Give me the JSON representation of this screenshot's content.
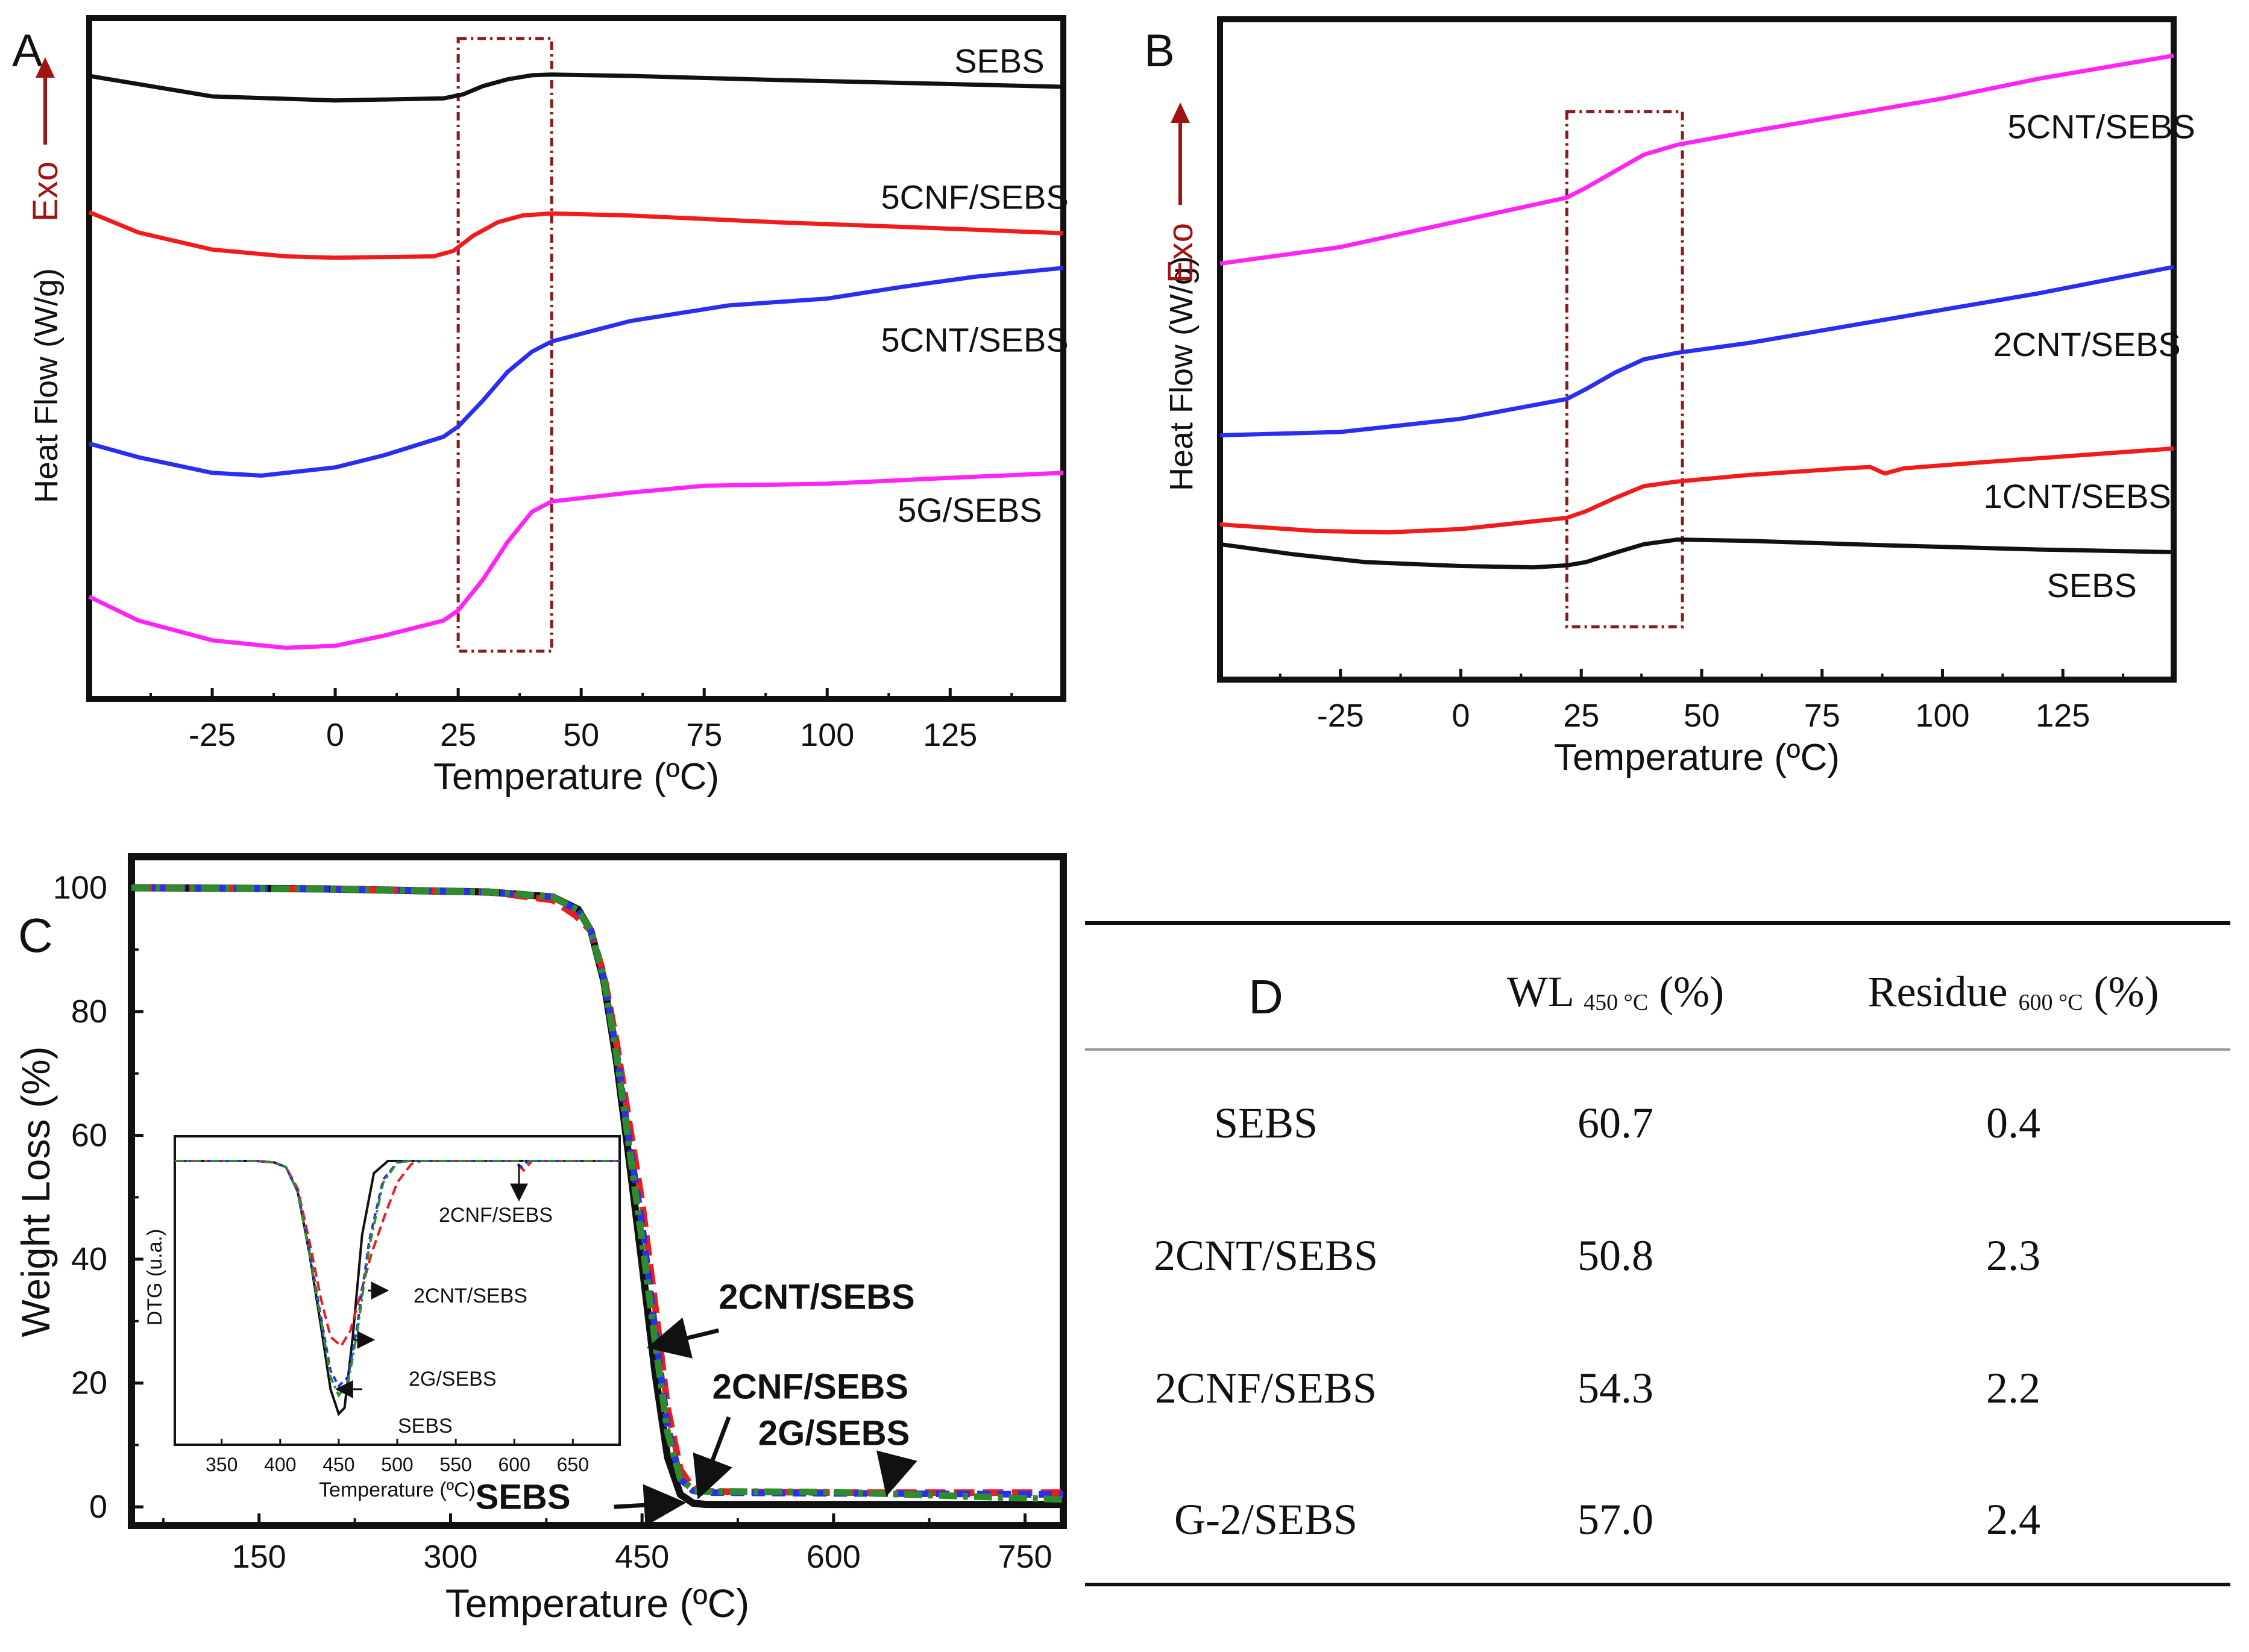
{
  "colors": {
    "black": "#111111",
    "red": "#f01c1c",
    "blue": "#2a2ef0",
    "magenta": "#ff24f6",
    "green": "#2e8b2e",
    "exo": "#a11313",
    "box": "#8b1a1a",
    "rule_gray": "#9a9a9a"
  },
  "chart_data": [
    {
      "id": "A",
      "panel_label": "A",
      "type": "line",
      "xlabel": "Temperature (ºC)",
      "ylabel": "Heat Flow (W/g)",
      "exo_label": "Exo",
      "xlim": [
        -50,
        148
      ],
      "ylim": [
        0,
        100
      ],
      "xticks": [
        -25,
        0,
        25,
        50,
        75,
        100,
        125
      ],
      "tick_labels": [
        "-25",
        "0",
        "25",
        "50",
        "75",
        "100",
        "125"
      ],
      "highlight_box": {
        "x0": 25,
        "x1": 44,
        "y0": 7,
        "y1": 97
      },
      "series": [
        {
          "name": "SEBS",
          "label": "SEBS",
          "color": "black",
          "label_x": 135,
          "label_y": 92,
          "x": [
            -50,
            -25,
            0,
            22,
            26,
            30,
            35,
            40,
            44,
            60,
            90,
            120,
            148
          ],
          "y": [
            91.5,
            88.5,
            87.9,
            88.2,
            88.8,
            90.0,
            91.0,
            91.6,
            91.7,
            91.5,
            90.9,
            90.4,
            89.9
          ]
        },
        {
          "name": "5CNF/SEBS",
          "label": "5CNF/SEBS",
          "color": "red",
          "label_x": 130,
          "label_y": 72,
          "x": [
            -50,
            -40,
            -25,
            -10,
            0,
            20,
            24,
            28,
            33,
            38,
            44,
            60,
            90,
            120,
            148
          ],
          "y": [
            71.5,
            68.5,
            66.0,
            65.0,
            64.8,
            65.0,
            65.8,
            68.0,
            70.0,
            71.0,
            71.3,
            71.0,
            70.0,
            69.2,
            68.4
          ]
        },
        {
          "name": "5CNT/SEBS",
          "label": "5CNT/SEBS",
          "color": "blue",
          "label_x": 130,
          "label_y": 51,
          "x": [
            -50,
            -40,
            -25,
            -15,
            0,
            10,
            22,
            25,
            30,
            35,
            40,
            44,
            60,
            80,
            100,
            115,
            130,
            148
          ],
          "y": [
            37.5,
            35.5,
            33.2,
            32.8,
            34.0,
            35.8,
            38.5,
            40.0,
            43.8,
            48.0,
            51.0,
            52.5,
            55.5,
            57.8,
            58.8,
            60.5,
            62.0,
            63.3
          ]
        },
        {
          "name": "5G/SEBS",
          "label": "5G/SEBS",
          "color": "magenta",
          "label_x": 129,
          "label_y": 26,
          "x": [
            -50,
            -40,
            -25,
            -10,
            0,
            10,
            22,
            25,
            30,
            35,
            40,
            44,
            60,
            75,
            100,
            120,
            148
          ],
          "y": [
            15.0,
            11.5,
            8.6,
            7.5,
            7.8,
            9.3,
            11.5,
            13.0,
            17.5,
            23.0,
            27.5,
            29.0,
            30.3,
            31.3,
            31.6,
            32.3,
            33.2
          ]
        }
      ]
    },
    {
      "id": "B",
      "panel_label": "B",
      "type": "line",
      "xlabel": "Temperature (ºC)",
      "ylabel": "Heat Flow (W/g)",
      "exo_label": "Exo",
      "xlim": [
        -50,
        148
      ],
      "ylim": [
        0,
        100
      ],
      "xticks": [
        -25,
        0,
        25,
        50,
        75,
        100,
        125
      ],
      "tick_labels": [
        "-25",
        "0",
        "25",
        "50",
        "75",
        "100",
        "125"
      ],
      "highlight_box": {
        "x0": 22,
        "x1": 46,
        "y0": 8,
        "y1": 86
      },
      "series": [
        {
          "name": "5CNT/SEBS",
          "label": "5CNT/SEBS",
          "color": "magenta",
          "label_x": 133,
          "label_y": 82,
          "x": [
            -50,
            -25,
            0,
            22,
            26,
            32,
            38,
            45,
            60,
            80,
            100,
            120,
            148
          ],
          "y": [
            63.0,
            65.5,
            69.5,
            73.0,
            74.5,
            77.0,
            79.5,
            81.0,
            83.0,
            85.5,
            88.0,
            91.0,
            94.5
          ]
        },
        {
          "name": "2CNT/SEBS",
          "label": "2CNT/SEBS",
          "color": "blue",
          "label_x": 130,
          "label_y": 49,
          "x": [
            -50,
            -25,
            0,
            22,
            26,
            32,
            38,
            45,
            60,
            80,
            100,
            120,
            148
          ],
          "y": [
            37.0,
            37.5,
            39.5,
            42.5,
            44.0,
            46.5,
            48.5,
            49.5,
            51.0,
            53.5,
            56.0,
            58.5,
            62.5
          ]
        },
        {
          "name": "1CNT/SEBS",
          "label": "1CNT/SEBS",
          "color": "red",
          "label_x": 128,
          "label_y": 26,
          "x": [
            -50,
            -30,
            -15,
            0,
            22,
            26,
            32,
            38,
            45,
            60,
            80,
            85,
            88,
            92,
            110,
            148
          ],
          "y": [
            23.5,
            22.5,
            22.3,
            22.8,
            24.5,
            25.5,
            27.5,
            29.3,
            30.0,
            31.0,
            32.0,
            32.2,
            31.2,
            32.0,
            33.0,
            35.0
          ]
        },
        {
          "name": "SEBS",
          "label": "SEBS",
          "color": "black",
          "label_x": 131,
          "label_y": 12.5,
          "x": [
            -50,
            -35,
            -20,
            0,
            15,
            22,
            26,
            32,
            38,
            45,
            60,
            90,
            120,
            148
          ],
          "y": [
            20.5,
            19.0,
            17.8,
            17.2,
            17.0,
            17.3,
            17.8,
            19.2,
            20.5,
            21.2,
            21.0,
            20.3,
            19.7,
            19.3
          ]
        }
      ]
    },
    {
      "id": "C",
      "panel_label": "C",
      "type": "line",
      "xlabel": "Temperature (ºC)",
      "ylabel": "Weight Loss (%)",
      "xlim": [
        50,
        780
      ],
      "ylim": [
        -3,
        105
      ],
      "xticks": [
        150,
        300,
        450,
        600,
        750
      ],
      "tick_labels": [
        "150",
        "300",
        "450",
        "600",
        "750"
      ],
      "yticks": [
        0,
        20,
        40,
        60,
        80,
        100
      ],
      "ytick_labels": [
        "0",
        "20",
        "40",
        "60",
        "80",
        "100"
      ],
      "series": [
        {
          "name": "SEBS",
          "color": "black",
          "dash": "solid",
          "x": [
            50,
            200,
            330,
            380,
            400,
            410,
            420,
            430,
            440,
            450,
            460,
            470,
            480,
            490,
            500,
            600,
            780
          ],
          "y": [
            100,
            99.8,
            99.3,
            98.5,
            96.5,
            93,
            85,
            72,
            56,
            39.3,
            22,
            8,
            2,
            0.6,
            0.4,
            0.4,
            0.4
          ]
        },
        {
          "name": "2CNT/SEBS",
          "color": "red",
          "dash": "long",
          "x": [
            50,
            200,
            330,
            380,
            398,
            410,
            420,
            430,
            440,
            450,
            460,
            470,
            480,
            490,
            500,
            600,
            780
          ],
          "y": [
            100,
            99.8,
            99.3,
            98.0,
            95.5,
            93,
            86,
            75,
            62,
            49.2,
            33,
            16,
            6,
            3,
            2.5,
            2.3,
            2.3
          ]
        },
        {
          "name": "2CNF/SEBS",
          "color": "blue",
          "dash": "medium",
          "x": [
            50,
            200,
            330,
            380,
            400,
            410,
            420,
            430,
            440,
            450,
            460,
            470,
            480,
            490,
            500,
            600,
            780
          ],
          "y": [
            100,
            99.8,
            99.3,
            98.5,
            96.3,
            93,
            85.5,
            73.5,
            59,
            45.7,
            29,
            13,
            4.5,
            2.6,
            2.3,
            2.2,
            2.0
          ]
        },
        {
          "name": "2G/SEBS",
          "color": "green",
          "dash": "dashdot",
          "x": [
            50,
            200,
            330,
            380,
            400,
            410,
            420,
            430,
            440,
            450,
            460,
            470,
            480,
            490,
            500,
            600,
            780
          ],
          "y": [
            100,
            99.8,
            99.3,
            98.5,
            96.4,
            93,
            85.3,
            73,
            58,
            43,
            27,
            12,
            4.5,
            2.8,
            2.5,
            2.4,
            1.2
          ]
        }
      ],
      "annotations": [
        {
          "text": "2CNT/SEBS",
          "x": 510,
          "y": 32,
          "arrow_from": [
            510,
            28.5
          ],
          "arrow_to": [
            460,
            26
          ]
        },
        {
          "text": "2CNF/SEBS",
          "x": 505,
          "y": 17.5,
          "arrow_from": [
            518,
            14.5
          ],
          "arrow_to": [
            496,
            2.5
          ]
        },
        {
          "text": "2G/SEBS",
          "x": 541,
          "y": 10,
          "arrow_from": [
            648,
            7
          ],
          "arrow_to": [
            643,
            3
          ]
        },
        {
          "text": "SEBS",
          "x": 394,
          "y": -0.3,
          "arrow_from": [
            428,
            0
          ],
          "arrow_to": [
            478,
            0.6
          ]
        }
      ],
      "inset": {
        "type": "line",
        "ylabel": "DTG (u.a.)",
        "xlabel": "Temperature (ºC)",
        "xlim": [
          310,
          690
        ],
        "ylim": [
          0,
          100
        ],
        "xticks": [
          350,
          400,
          450,
          500,
          550,
          600,
          650
        ],
        "tick_labels": [
          "350",
          "400",
          "450",
          "500",
          "550",
          "600",
          "650"
        ],
        "series": [
          {
            "name": "SEBS",
            "color": "black",
            "dash": "solid",
            "x": [
              310,
              380,
              395,
              405,
              415,
              425,
              435,
              443,
              450,
              455,
              462,
              470,
              480,
              492,
              500,
              600,
              690
            ],
            "y": [
              92,
              92,
              91.5,
              90,
              82,
              62,
              38,
              18,
              10,
              12,
              35,
              68,
              88,
              92,
              92,
              92,
              92
            ]
          },
          {
            "name": "2CNT/SEBS",
            "color": "red",
            "dash": "long",
            "x": [
              310,
              380,
              395,
              405,
              415,
              425,
              435,
              443,
              452,
              460,
              468,
              478,
              490,
              500,
              512,
              520,
              600,
              608,
              615,
              690
            ],
            "y": [
              92,
              92,
              91.5,
              90,
              83,
              66,
              47,
              35,
              32,
              37,
              48,
              62,
              75,
              85,
              91,
              92,
              92,
              89,
              92,
              92
            ]
          },
          {
            "name": "2CNF/SEBS",
            "color": "blue",
            "dash": "medium",
            "x": [
              310,
              380,
              395,
              405,
              415,
              425,
              435,
              443,
              450,
              458,
              466,
              476,
              488,
              500,
              510,
              600,
              606,
              612,
              690
            ],
            "y": [
              92,
              92,
              91.5,
              90,
              82,
              63,
              41,
              24,
              19,
              22,
              39,
              66,
              86,
              91.5,
              92,
              92,
              90,
              92,
              92
            ]
          },
          {
            "name": "2G/SEBS",
            "color": "green",
            "dash": "dashdot",
            "x": [
              310,
              380,
              395,
              405,
              415,
              425,
              435,
              443,
              450,
              458,
              466,
              476,
              488,
              500,
              510,
              690
            ],
            "y": [
              92,
              92,
              91.5,
              90,
              82,
              62,
              40,
              22,
              16,
              20,
              37,
              64,
              85,
              91.5,
              92,
              92
            ]
          }
        ],
        "annotations": [
          {
            "text": "2CNF/SEBS",
            "arrow_from": [
              604,
              91
            ],
            "arrow_to": [
              604,
              80
            ]
          },
          {
            "text": "2CNT/SEBS",
            "arrow_from": [
              475,
              50
            ],
            "arrow_to": [
              490,
              50
            ]
          },
          {
            "text": "2G/SEBS",
            "arrow_from": [
              463,
              34
            ],
            "arrow_to": [
              478,
              34
            ]
          },
          {
            "text": "SEBS",
            "arrow_from": [
              470,
              18
            ],
            "arrow_to": [
              450,
              18
            ]
          }
        ]
      }
    },
    {
      "id": "D",
      "panel_label": "D",
      "type": "table",
      "columns": [
        {
          "main": "WL",
          "sub": "450 °C",
          "unit": "(%)"
        },
        {
          "main": "Residue",
          "sub": "600 °C",
          "unit": "(%)"
        }
      ],
      "rows": [
        [
          "SEBS",
          "60.7",
          "0.4"
        ],
        [
          "2CNT/SEBS",
          "50.8",
          "2.3"
        ],
        [
          "2CNF/SEBS",
          "54.3",
          "2.2"
        ],
        [
          "G-2/SEBS",
          "57.0",
          "2.4"
        ]
      ]
    }
  ]
}
